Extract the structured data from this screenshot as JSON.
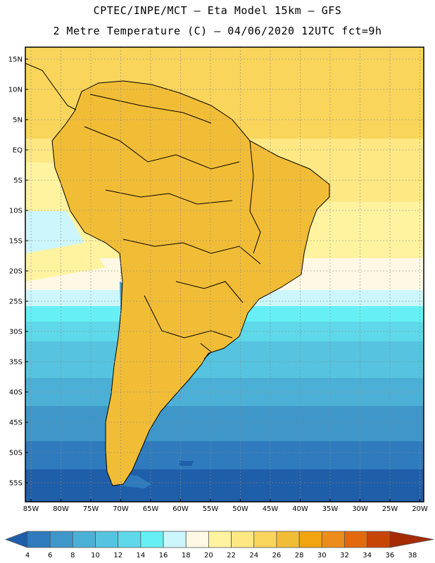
{
  "header": {
    "line1": "CPTEC/INPE/MCT –  Eta Model 15km – GFS",
    "line2": "2 Metre Temperature (C) – 04/06/2020 12UTC fct=9h"
  },
  "map": {
    "lat_labels": [
      "15N",
      "10N",
      "5N",
      "EQ",
      "5S",
      "10S",
      "15S",
      "20S",
      "25S",
      "30S",
      "35S",
      "40S",
      "45S",
      "50S",
      "55S"
    ],
    "lon_labels": [
      "85W",
      "80W",
      "75W",
      "70W",
      "65W",
      "60W",
      "55W",
      "50W",
      "45W",
      "40W",
      "35W",
      "30W",
      "25W",
      "20W"
    ]
  },
  "legend": {
    "values": [
      "4",
      "6",
      "8",
      "10",
      "12",
      "14",
      "16",
      "18",
      "20",
      "22",
      "24",
      "26",
      "28",
      "30",
      "32",
      "34",
      "36",
      "38"
    ],
    "colors": [
      "#1f5ea8",
      "#2f7bbd",
      "#3e96c9",
      "#4cb0d6",
      "#56c4e0",
      "#5fd8ea",
      "#66f0f5",
      "#ccf6fb",
      "#fff8e4",
      "#fff3a0",
      "#fde884",
      "#f9d55c",
      "#f2bd36",
      "#f2a40e",
      "#ec8c1a",
      "#e26a0c",
      "#c84605",
      "#a62b02"
    ]
  }
}
